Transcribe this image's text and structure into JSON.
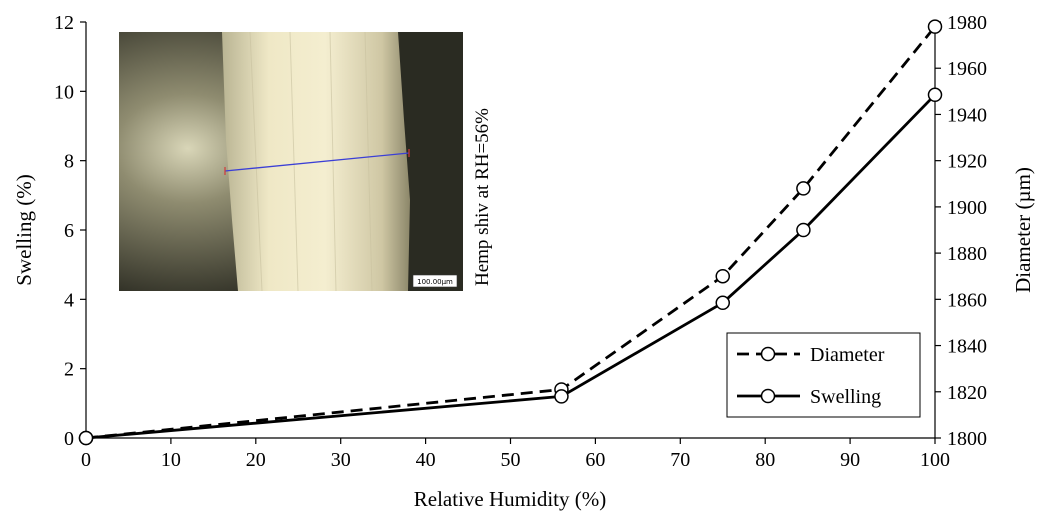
{
  "chart_data": {
    "type": "line",
    "title": "",
    "xlabel": "Relative Humidity (%)",
    "ylabel": "Swelling (%)",
    "y2label": "Diameter (µm)",
    "xlim": [
      0,
      100
    ],
    "ylim": [
      0,
      12
    ],
    "y2lim": [
      1800,
      1980
    ],
    "xticks": [
      "0",
      "10",
      "20",
      "30",
      "40",
      "50",
      "60",
      "70",
      "80",
      "90",
      "100"
    ],
    "yticks": [
      "0",
      "2",
      "4",
      "6",
      "8",
      "10",
      "12"
    ],
    "y2ticks": [
      "1800",
      "1820",
      "1840",
      "1860",
      "1880",
      "1900",
      "1920",
      "1940",
      "1960",
      "1980"
    ],
    "grid": false,
    "legend_position": "bottom-right",
    "series": [
      {
        "name": "Diameter",
        "axis": "right",
        "style": "dashed",
        "marker": "open-circle",
        "x": [
          0,
          56,
          75,
          84.5,
          100
        ],
        "y": [
          1800,
          1821,
          1870,
          1908,
          1978
        ]
      },
      {
        "name": "Swelling",
        "axis": "left",
        "style": "solid",
        "marker": "open-circle",
        "x": [
          0,
          56,
          75,
          84.5,
          100
        ],
        "y": [
          0,
          1.2,
          3.9,
          6.0,
          9.9
        ]
      }
    ],
    "inset": {
      "label": "Hemp shiv at RH=56%",
      "scale_bar": "100.00μm"
    }
  },
  "colors": {
    "line": "#000000",
    "marker_fill": "#ffffff",
    "measure_line": "#3b3fd6",
    "measure_tick": "#d23a3a"
  }
}
